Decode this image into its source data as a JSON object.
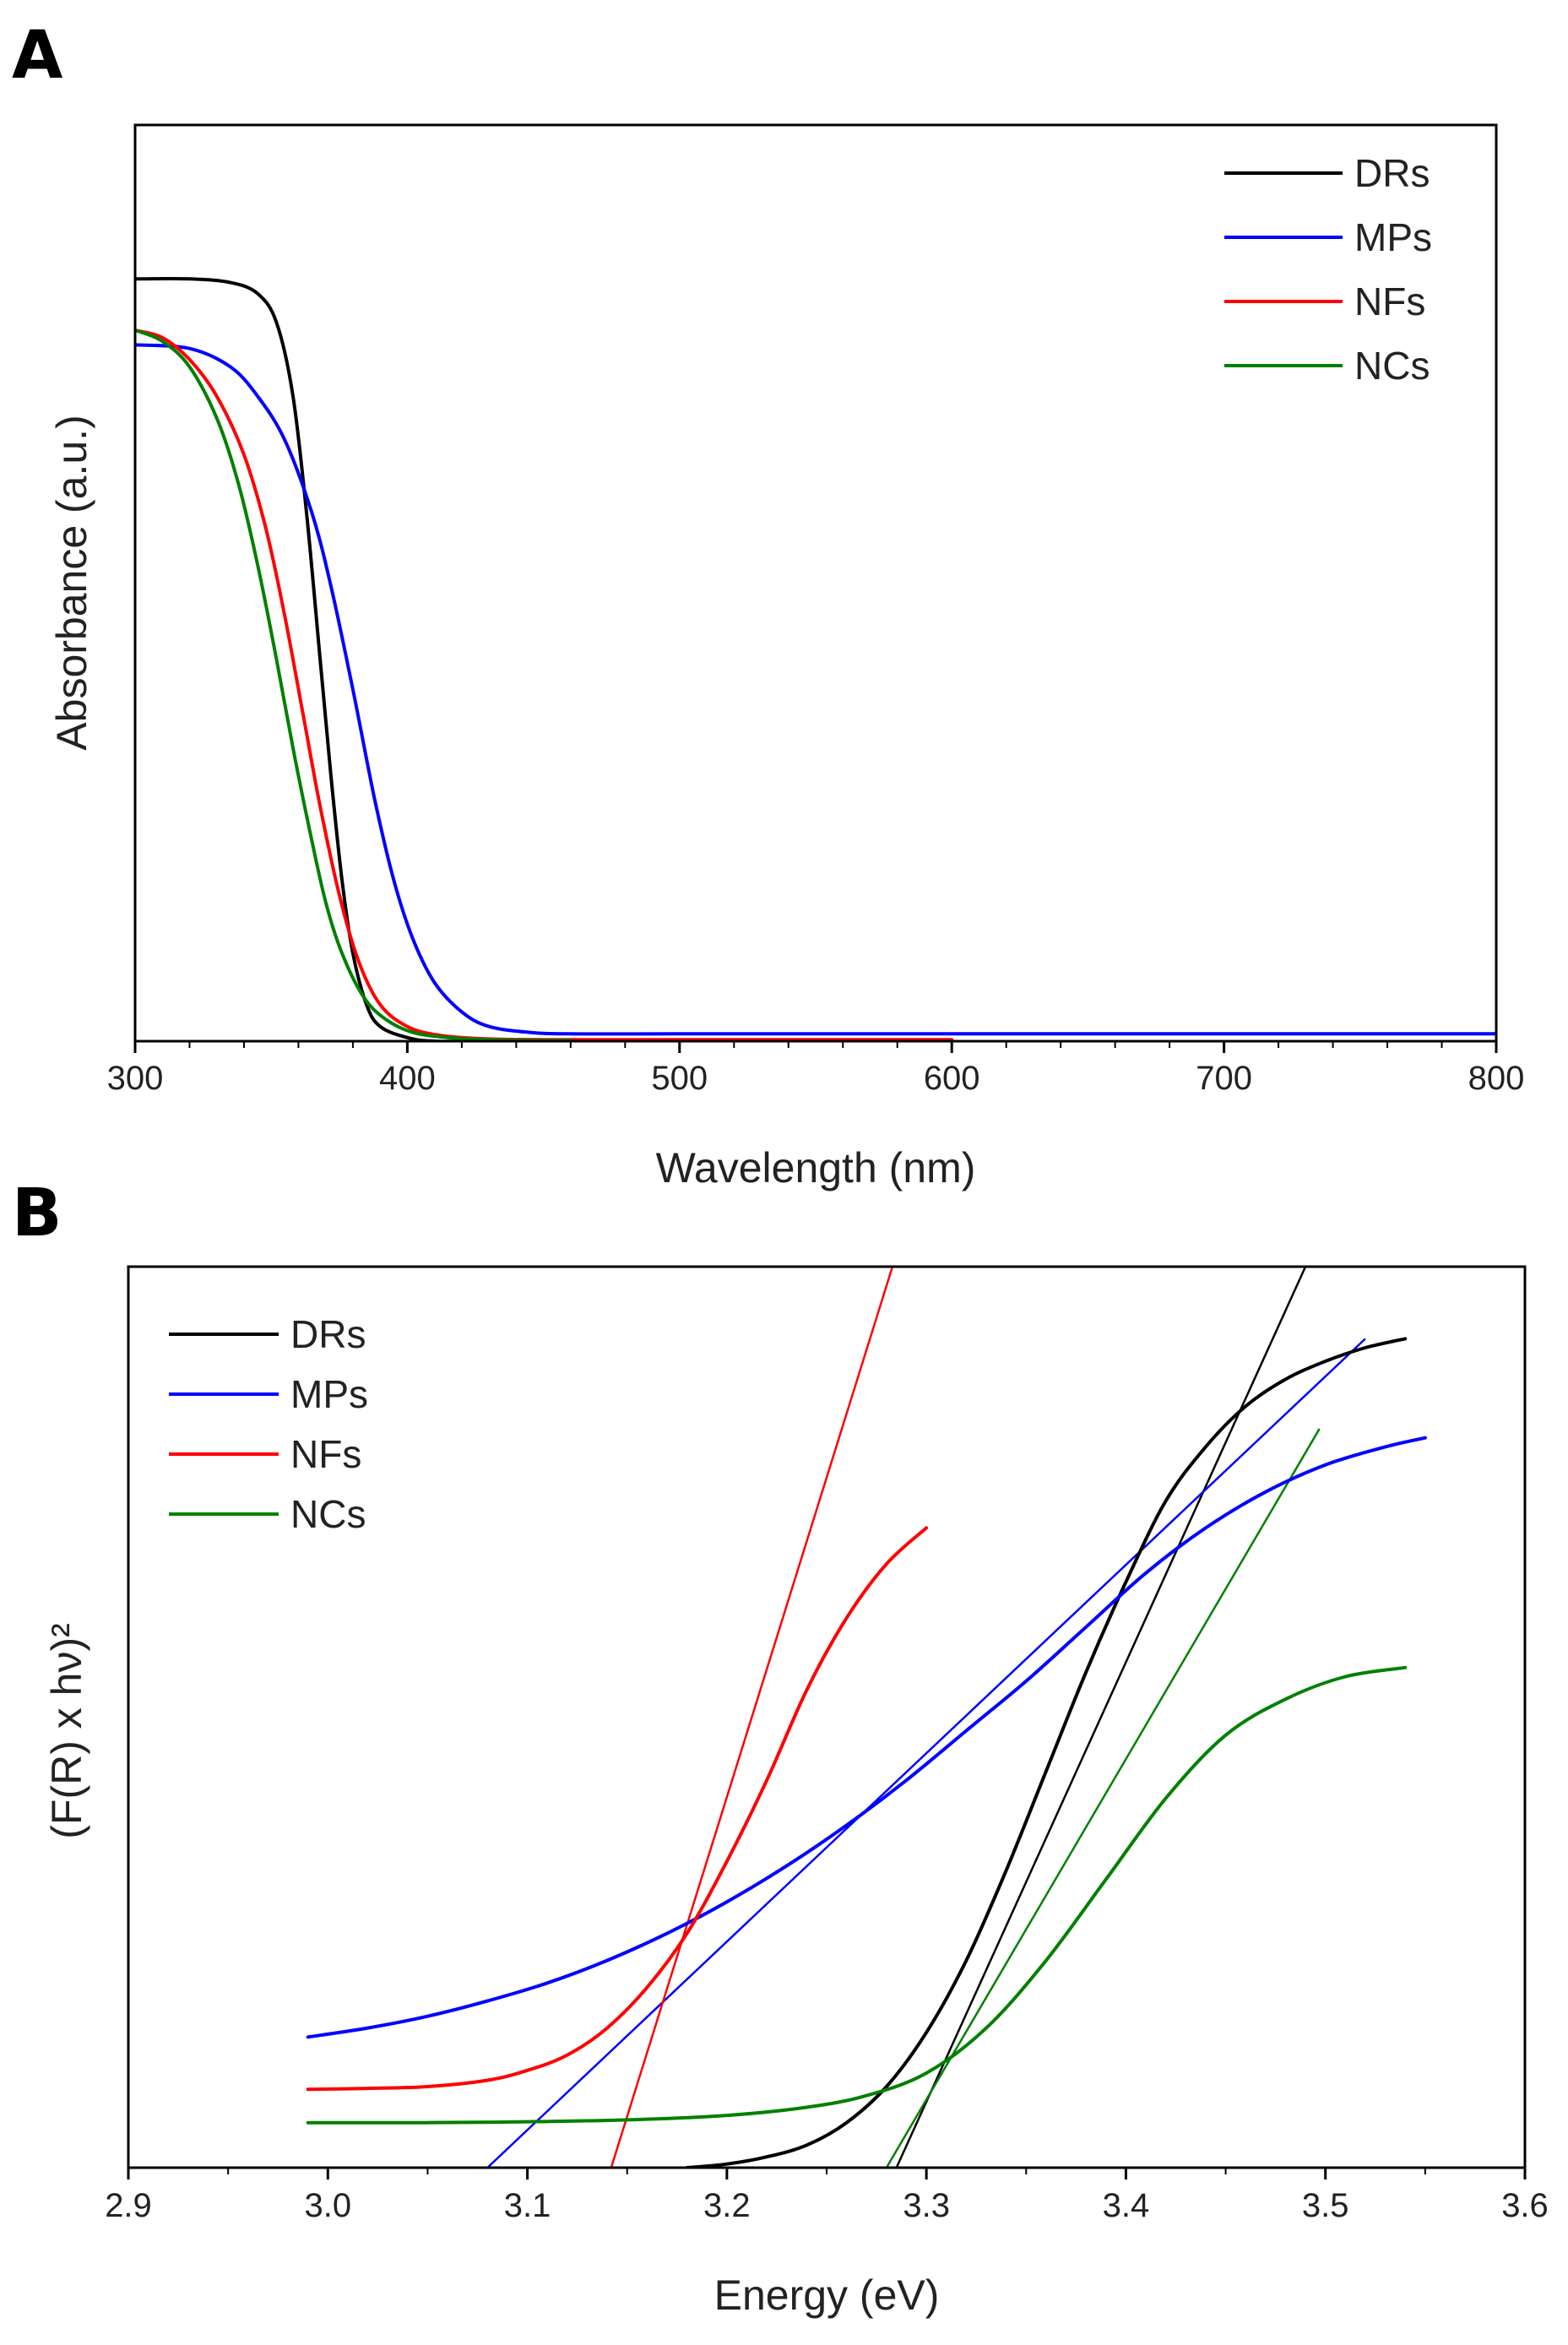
{
  "colors": {
    "DRs": "#000000",
    "MPs": "#0000ff",
    "NFs": "#ff0000",
    "NCs": "#008000"
  },
  "chart_data": [
    {
      "panel": "A",
      "type": "line",
      "xlabel": "Wavelength (nm)",
      "ylabel": "Absorbance (a.u.)",
      "xlim": [
        300,
        800
      ],
      "ylim": [
        0,
        1.25
      ],
      "xticks": [
        300,
        400,
        500,
        600,
        700,
        800
      ],
      "grid": false,
      "legend_position": "top-right",
      "series": [
        {
          "name": "DRs",
          "x": [
            300,
            320,
            335,
            345,
            352,
            358,
            363,
            368,
            372,
            376,
            380,
            385,
            390,
            400,
            410,
            430,
            460,
            500,
            550,
            600
          ],
          "y": [
            1.04,
            1.04,
            1.035,
            1.02,
            0.98,
            0.88,
            0.72,
            0.52,
            0.36,
            0.22,
            0.12,
            0.05,
            0.02,
            0.005,
            0.0,
            0.0,
            0.0,
            0.0,
            0.0,
            0.0
          ]
        },
        {
          "name": "MPs",
          "x": [
            300,
            320,
            335,
            345,
            355,
            365,
            372,
            380,
            388,
            395,
            402,
            410,
            420,
            430,
            445,
            460,
            500,
            600,
            700,
            800
          ],
          "y": [
            0.95,
            0.945,
            0.92,
            0.88,
            0.82,
            0.72,
            0.62,
            0.48,
            0.33,
            0.22,
            0.14,
            0.08,
            0.04,
            0.02,
            0.012,
            0.01,
            0.01,
            0.01,
            0.01,
            0.01
          ]
        },
        {
          "name": "NFs",
          "x": [
            300,
            310,
            320,
            330,
            340,
            348,
            355,
            362,
            368,
            375,
            382,
            390,
            400,
            412,
            430,
            460,
            500,
            550,
            600
          ],
          "y": [
            0.97,
            0.96,
            0.93,
            0.88,
            0.8,
            0.7,
            0.58,
            0.44,
            0.32,
            0.2,
            0.11,
            0.05,
            0.02,
            0.008,
            0.003,
            0.002,
            0.002,
            0.002,
            0.002
          ]
        },
        {
          "name": "NCs",
          "x": [
            300,
            310,
            320,
            330,
            338,
            345,
            352,
            358,
            364,
            370,
            376,
            384,
            392,
            402,
            415,
            430,
            450,
            460
          ],
          "y": [
            0.97,
            0.955,
            0.92,
            0.85,
            0.76,
            0.65,
            0.52,
            0.4,
            0.29,
            0.19,
            0.12,
            0.06,
            0.03,
            0.012,
            0.005,
            0.002,
            0.001,
            0.001
          ]
        }
      ]
    },
    {
      "panel": "B",
      "type": "line",
      "xlabel": "Energy (eV)",
      "ylabel": "(F(R) x hν)²",
      "xlim": [
        2.9,
        3.6
      ],
      "ylim": [
        0,
        1.0
      ],
      "xticks": [
        "2.9",
        "3.0",
        "3.1",
        "3.2",
        "3.3",
        "3.4",
        "3.5",
        "3.6"
      ],
      "grid": false,
      "legend_position": "top-left",
      "series": [
        {
          "name": "DRs",
          "x": [
            3.18,
            3.2,
            3.22,
            3.24,
            3.26,
            3.28,
            3.3,
            3.32,
            3.34,
            3.36,
            3.38,
            3.4,
            3.42,
            3.44,
            3.46,
            3.48,
            3.5,
            3.52,
            3.54
          ],
          "y": [
            0.0,
            0.004,
            0.012,
            0.025,
            0.05,
            0.09,
            0.15,
            0.23,
            0.33,
            0.44,
            0.55,
            0.65,
            0.74,
            0.8,
            0.845,
            0.875,
            0.895,
            0.91,
            0.92
          ]
        },
        {
          "name": "MPs",
          "x": [
            2.99,
            3.02,
            3.05,
            3.08,
            3.11,
            3.14,
            3.17,
            3.2,
            3.23,
            3.26,
            3.29,
            3.32,
            3.35,
            3.38,
            3.41,
            3.44,
            3.47,
            3.5,
            3.53,
            3.55
          ],
          "y": [
            0.145,
            0.155,
            0.168,
            0.185,
            0.205,
            0.23,
            0.26,
            0.295,
            0.335,
            0.38,
            0.43,
            0.485,
            0.54,
            0.6,
            0.66,
            0.71,
            0.75,
            0.78,
            0.8,
            0.81
          ]
        },
        {
          "name": "NFs",
          "x": [
            2.99,
            3.02,
            3.05,
            3.08,
            3.1,
            3.12,
            3.14,
            3.16,
            3.18,
            3.2,
            3.22,
            3.24,
            3.26,
            3.28,
            3.3
          ],
          "y": [
            0.087,
            0.088,
            0.09,
            0.097,
            0.108,
            0.125,
            0.155,
            0.2,
            0.26,
            0.34,
            0.43,
            0.53,
            0.61,
            0.67,
            0.71
          ]
        },
        {
          "name": "NCs",
          "x": [
            2.99,
            3.05,
            3.1,
            3.15,
            3.2,
            3.24,
            3.27,
            3.3,
            3.33,
            3.36,
            3.39,
            3.42,
            3.45,
            3.48,
            3.51,
            3.54
          ],
          "y": [
            0.05,
            0.05,
            0.051,
            0.053,
            0.058,
            0.067,
            0.08,
            0.105,
            0.155,
            0.23,
            0.32,
            0.41,
            0.48,
            0.52,
            0.545,
            0.555
          ]
        }
      ],
      "tangent_lines": [
        {
          "name": "DRs",
          "x": [
            3.285,
            3.49
          ],
          "y": [
            0.0,
            1.0
          ]
        },
        {
          "name": "MPs",
          "x": [
            3.08,
            3.52
          ],
          "y": [
            0.0,
            0.92
          ]
        },
        {
          "name": "NFs",
          "x": [
            3.142,
            3.283
          ],
          "y": [
            0.0,
            1.0
          ]
        },
        {
          "name": "NCs",
          "x": [
            3.28,
            3.497
          ],
          "y": [
            0.0,
            0.82
          ]
        }
      ]
    }
  ]
}
